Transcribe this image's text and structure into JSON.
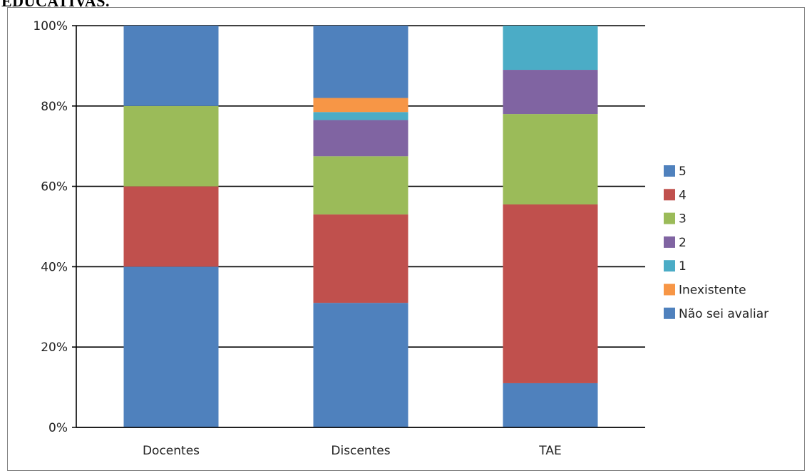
{
  "page_heading": "EDUCATIVAS.",
  "chart_data": {
    "type": "bar",
    "stacked": true,
    "percent_stacked": true,
    "categories": [
      "Docentes",
      "Discentes",
      "TAE"
    ],
    "series": [
      {
        "name": "Não sei avaliar",
        "color": "#4F81BD",
        "values": [
          40,
          31,
          11
        ]
      },
      {
        "name": "4",
        "color": "#C0504D",
        "values": [
          20,
          22,
          44.5
        ]
      },
      {
        "name": "3",
        "color": "#9BBB59",
        "values": [
          20,
          14.5,
          22.5
        ]
      },
      {
        "name": "2",
        "color": "#8064A2",
        "values": [
          0,
          9,
          11
        ]
      },
      {
        "name": "1",
        "color": "#4BACC6",
        "values": [
          0,
          2,
          11
        ]
      },
      {
        "name": "Inexistente",
        "color": "#F79646",
        "values": [
          0,
          3.5,
          0
        ]
      },
      {
        "name": "5",
        "color": "#4F81BD",
        "values": [
          20,
          18,
          0
        ]
      }
    ],
    "legend_order": [
      "5",
      "4",
      "3",
      "2",
      "1",
      "Inexistente",
      "Não sei avaliar"
    ],
    "y_ticks": [
      "0%",
      "20%",
      "40%",
      "60%",
      "80%",
      "100%"
    ],
    "ylim": [
      0,
      100
    ],
    "grid": true,
    "legend_position": "right"
  }
}
